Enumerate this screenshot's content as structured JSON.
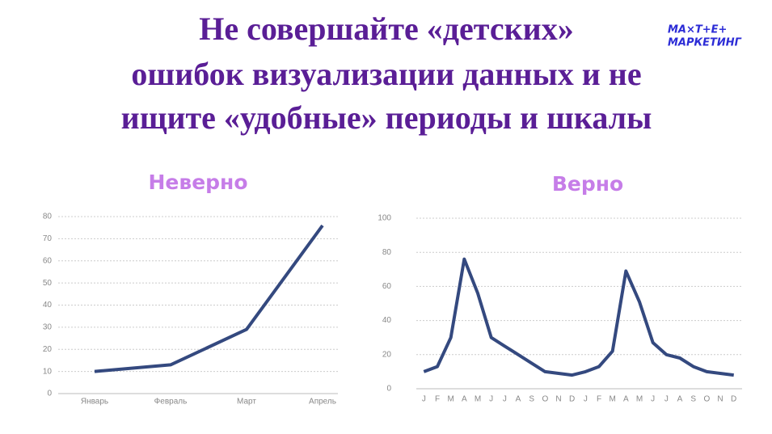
{
  "title": [
    "Не совершайте «детских»",
    "ошибок визуализации данных и не",
    "ищите «удобные» периоды и шкалы"
  ],
  "logo": [
    "МА×Т+Е+",
    "МАРКЕТИНГ"
  ],
  "chart_data": [
    {
      "type": "line",
      "title": "Неверно",
      "categories": [
        "Январь",
        "Февраль",
        "Март",
        "Апрель"
      ],
      "values": [
        10,
        13,
        29,
        76
      ],
      "color": "#34497f",
      "ylim": [
        0,
        80
      ],
      "yticks": [
        0,
        10,
        20,
        30,
        40,
        50,
        60,
        70,
        80
      ],
      "grid": true
    },
    {
      "type": "line",
      "title": "Верно",
      "categories": [
        "J",
        "F",
        "M",
        "A",
        "M",
        "J",
        "J",
        "A",
        "S",
        "O",
        "N",
        "D",
        "J",
        "F",
        "M",
        "A",
        "M",
        "J",
        "J",
        "A",
        "S",
        "O",
        "N",
        "D"
      ],
      "values": [
        10,
        13,
        30,
        76,
        56,
        30,
        25,
        20,
        15,
        10,
        9,
        8,
        10,
        13,
        22,
        69,
        51,
        27,
        20,
        18,
        13,
        10,
        9,
        8
      ],
      "color": "#34497f",
      "ylim": [
        0,
        100
      ],
      "yticks": [
        0,
        20,
        40,
        60,
        80,
        100
      ],
      "grid": true
    }
  ]
}
